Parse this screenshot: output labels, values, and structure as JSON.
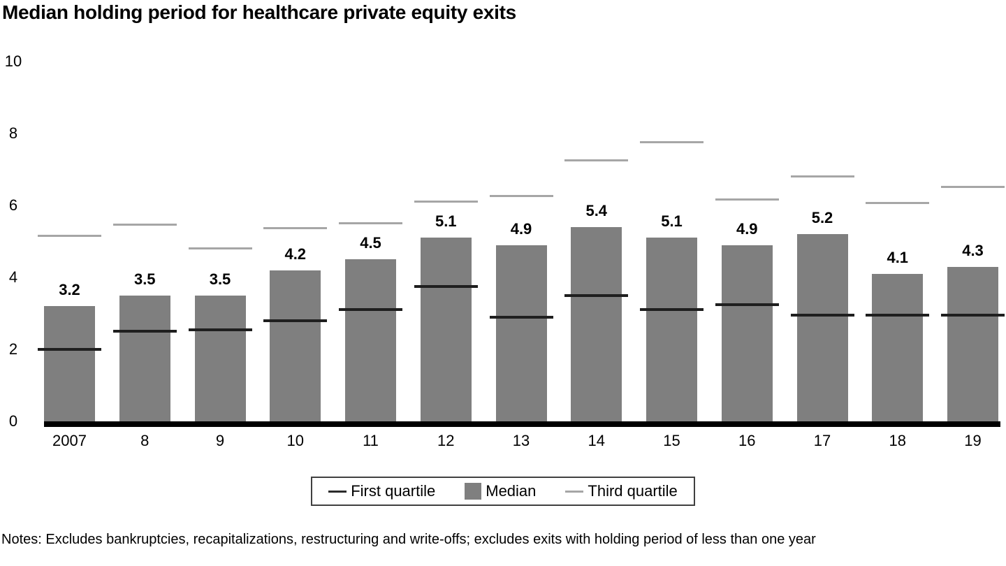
{
  "title": "Median holding period for healthcare private equity exits",
  "notes": "Notes: Excludes bankruptcies, recapitalizations, restructuring and write-offs; excludes exits with holding period of less than one year",
  "legend": {
    "first_quartile": "First quartile",
    "median": "Median",
    "third_quartile": "Third quartile"
  },
  "colors": {
    "bar": "#7f7f7f",
    "first_quartile_line": "#1f1f1f",
    "third_quartile_line": "#a6a6a6",
    "baseline": "#000000",
    "text": "#000000"
  },
  "chart_data": {
    "type": "bar",
    "title": "Median holding period for healthcare private equity exits",
    "categories": [
      "2007",
      "8",
      "9",
      "10",
      "11",
      "12",
      "13",
      "14",
      "15",
      "16",
      "17",
      "18",
      "19"
    ],
    "series": [
      {
        "name": "First quartile",
        "values": [
          2.0,
          2.5,
          2.55,
          2.8,
          3.1,
          3.75,
          2.9,
          3.5,
          3.1,
          3.25,
          2.95,
          2.95,
          2.95
        ]
      },
      {
        "name": "Median",
        "values": [
          3.2,
          3.5,
          3.5,
          4.2,
          4.5,
          5.1,
          4.9,
          5.4,
          5.1,
          4.9,
          5.2,
          4.1,
          4.3
        ]
      },
      {
        "name": "Third quartile",
        "values": [
          5.15,
          5.45,
          4.8,
          5.35,
          5.5,
          6.1,
          6.25,
          7.25,
          7.75,
          6.15,
          6.8,
          6.05,
          6.5
        ]
      }
    ],
    "bar_labels": [
      "3.2",
      "3.5",
      "3.5",
      "4.2",
      "4.5",
      "5.1",
      "4.9",
      "5.4",
      "5.1",
      "4.9",
      "5.2",
      "4.1",
      "4.3"
    ],
    "xlabel": "",
    "ylabel": "",
    "y_ticks": [
      0,
      2,
      4,
      6,
      8,
      10
    ],
    "ylim": [
      0,
      10
    ],
    "grid": false,
    "legend_position": "bottom"
  }
}
